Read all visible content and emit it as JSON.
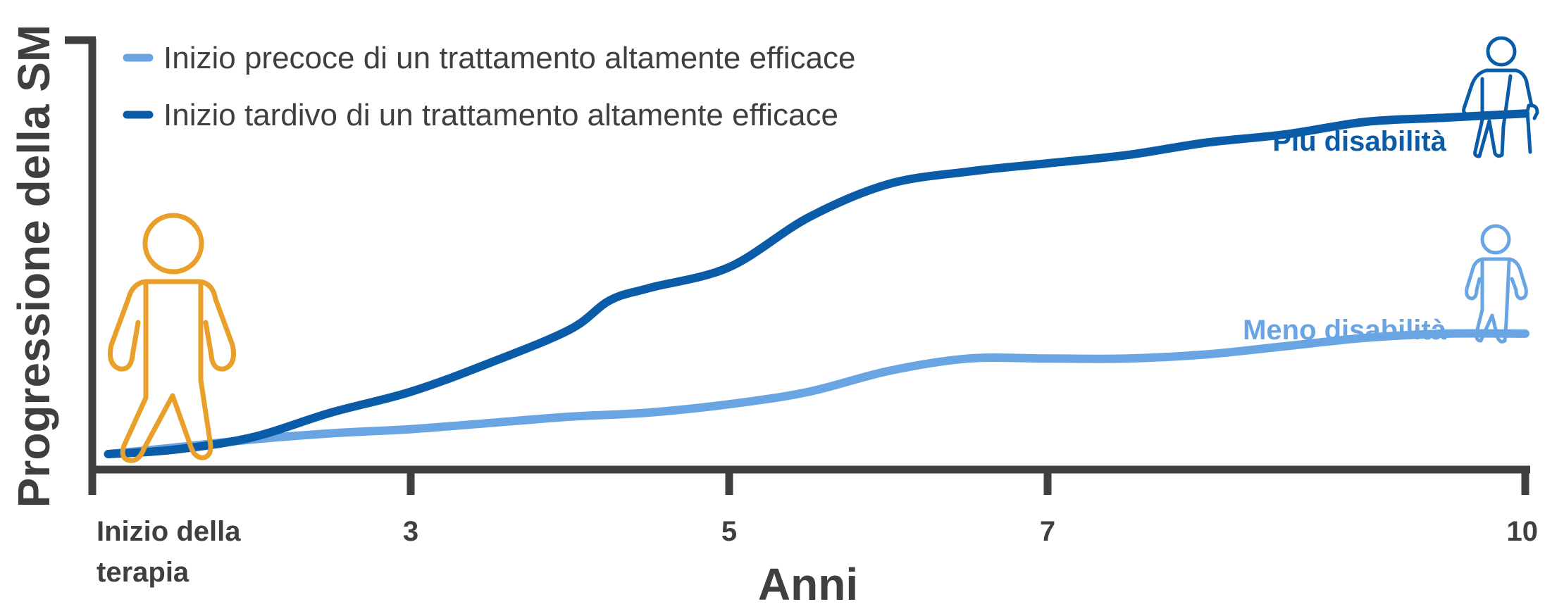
{
  "colors": {
    "axis": "#404040",
    "text": "#3f3f3f",
    "early": "#6aa5e3",
    "late": "#0b5ca8",
    "figure": "#e8a02a"
  },
  "chart_data": {
    "type": "line",
    "title": "",
    "xlabel": "Anni",
    "ylabel": "Progressione della SM",
    "xlim": [
      1,
      10
    ],
    "x_ticks": [
      {
        "value": 3,
        "label": "3"
      },
      {
        "value": 5,
        "label": "5"
      },
      {
        "value": 7,
        "label": "7"
      },
      {
        "value": 10,
        "label": "10"
      }
    ],
    "x_start_label": [
      "Inizio della",
      "terapia"
    ],
    "legend_position": "top-left",
    "grid": false,
    "series": [
      {
        "name": "Inizio precoce di un trattamento altamente efficace",
        "color": "#6aa5e3",
        "end_label": "Meno disabilità",
        "icon": "walking-person-icon",
        "x": [
          1.1,
          1.5,
          2,
          2.5,
          3,
          3.5,
          4,
          4.5,
          5,
          5.5,
          6,
          6.5,
          7,
          7.5,
          8,
          8.5,
          9,
          9.5,
          10
        ],
        "y": [
          0,
          0.015,
          0.035,
          0.05,
          0.06,
          0.075,
          0.09,
          0.1,
          0.12,
          0.15,
          0.2,
          0.23,
          0.23,
          0.23,
          0.24,
          0.26,
          0.28,
          0.29,
          0.29
        ]
      },
      {
        "name": "Inizio tardivo di un trattamento altamente efficace",
        "color": "#0b5ca8",
        "end_label": "Più disabilità",
        "icon": "person-with-cane-icon",
        "x": [
          1.1,
          1.5,
          2,
          2.5,
          3,
          3.5,
          4,
          4.25,
          4.5,
          5,
          5.5,
          6,
          6.5,
          7,
          7.5,
          8,
          8.5,
          9,
          9.5,
          10
        ],
        "y": [
          0,
          0.01,
          0.04,
          0.1,
          0.15,
          0.22,
          0.3,
          0.37,
          0.4,
          0.45,
          0.57,
          0.65,
          0.68,
          0.7,
          0.72,
          0.75,
          0.77,
          0.8,
          0.81,
          0.82
        ]
      }
    ]
  }
}
